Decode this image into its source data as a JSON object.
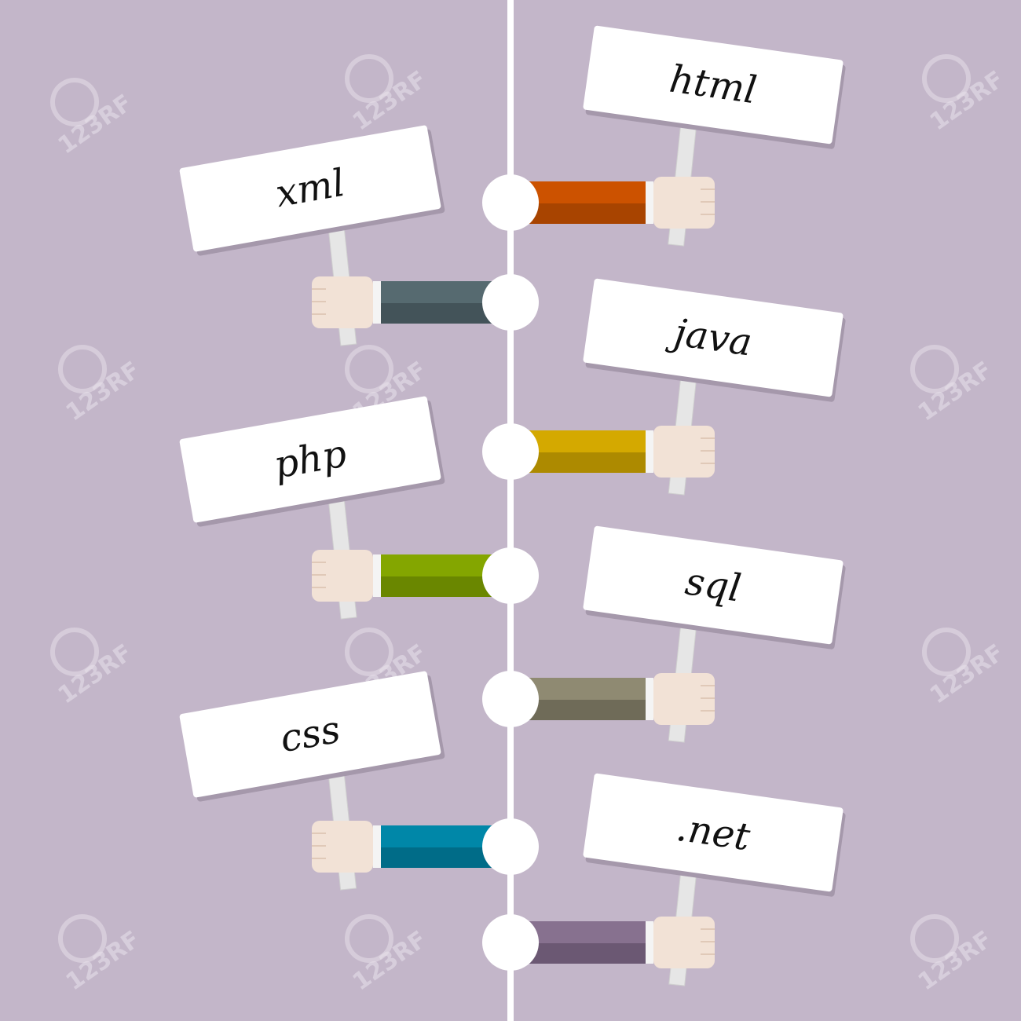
{
  "timeline": {
    "line_color": "#ffffff",
    "background": "#c3b6c9"
  },
  "items": [
    {
      "label": "html",
      "side": "right",
      "sleeve": "#cc5200",
      "sleeve_dark": "#a84400"
    },
    {
      "label": "xml",
      "side": "left",
      "sleeve": "#566a70",
      "sleeve_dark": "#435359"
    },
    {
      "label": "java",
      "side": "right",
      "sleeve": "#d4a900",
      "sleeve_dark": "#ad8a00"
    },
    {
      "label": "php",
      "side": "left",
      "sleeve": "#84a600",
      "sleeve_dark": "#6a8700"
    },
    {
      "label": "sql",
      "side": "right",
      "sleeve": "#8f8a72",
      "sleeve_dark": "#6f6b58"
    },
    {
      "label": "css",
      "side": "left",
      "sleeve": "#0087a8",
      "sleeve_dark": "#006c88"
    },
    {
      "label": ".net",
      "side": "right",
      "sleeve": "#87718f",
      "sleeve_dark": "#6b5873"
    }
  ],
  "watermark": "123RF"
}
